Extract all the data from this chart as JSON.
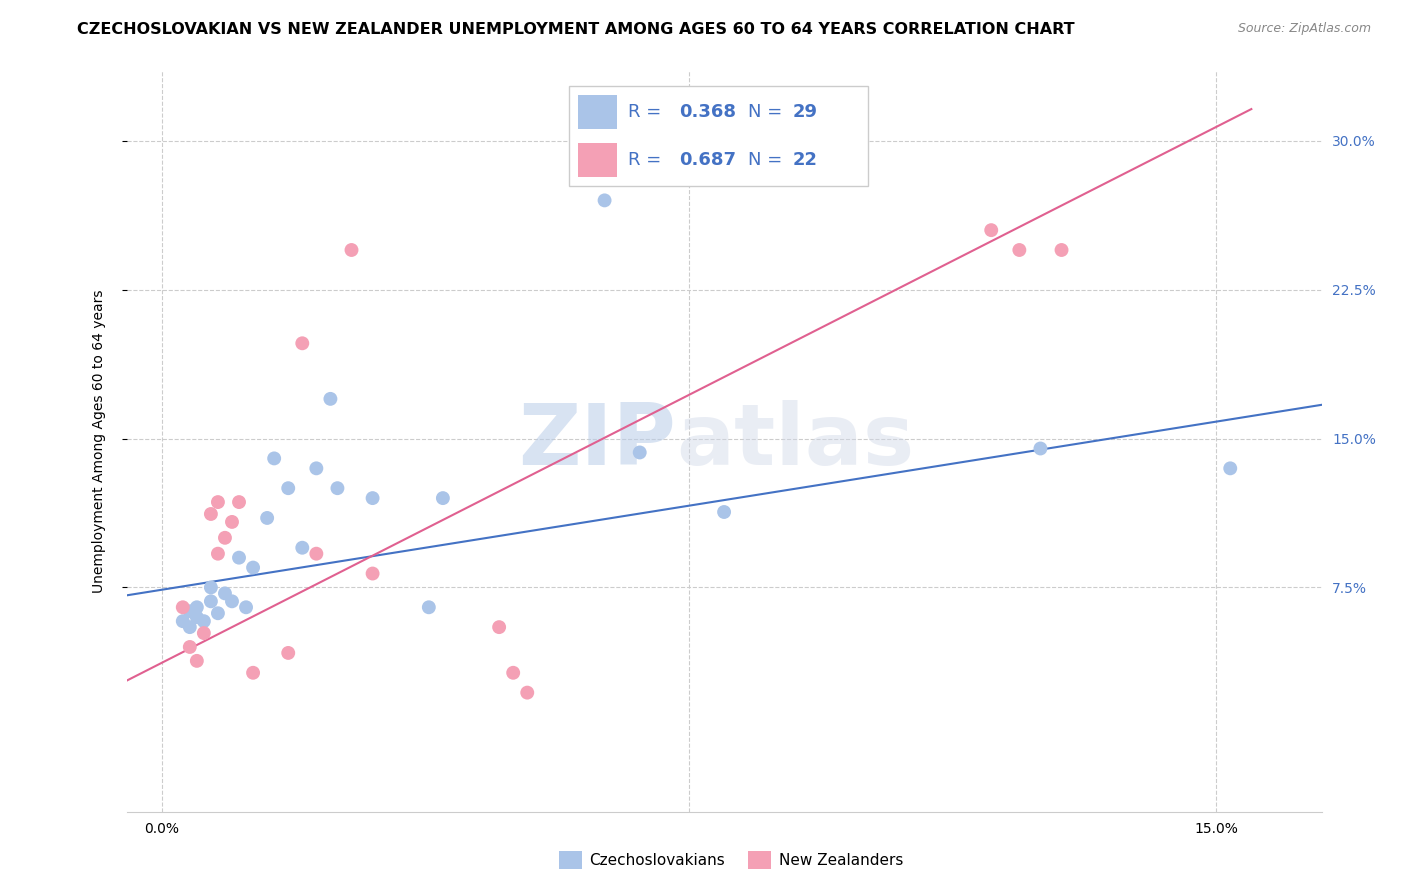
{
  "title": "CZECHOSLOVAKIAN VS NEW ZEALANDER UNEMPLOYMENT AMONG AGES 60 TO 64 YEARS CORRELATION CHART",
  "source": "Source: ZipAtlas.com",
  "ylabel": "Unemployment Among Ages 60 to 64 years",
  "watermark_zip": "ZIP",
  "watermark_atlas": "atlas",
  "xlim": [
    -0.005,
    0.165
  ],
  "ylim": [
    -0.038,
    0.335
  ],
  "blue_scatter_x": [
    0.003,
    0.004,
    0.004,
    0.005,
    0.005,
    0.006,
    0.007,
    0.007,
    0.008,
    0.009,
    0.01,
    0.011,
    0.012,
    0.013,
    0.015,
    0.016,
    0.018,
    0.02,
    0.022,
    0.024,
    0.025,
    0.03,
    0.038,
    0.04,
    0.063,
    0.068,
    0.08,
    0.125,
    0.152
  ],
  "blue_scatter_y": [
    0.058,
    0.055,
    0.063,
    0.06,
    0.065,
    0.058,
    0.068,
    0.075,
    0.062,
    0.072,
    0.068,
    0.09,
    0.065,
    0.085,
    0.11,
    0.14,
    0.125,
    0.095,
    0.135,
    0.17,
    0.125,
    0.12,
    0.065,
    0.12,
    0.27,
    0.143,
    0.113,
    0.145,
    0.135
  ],
  "pink_scatter_x": [
    0.003,
    0.004,
    0.005,
    0.006,
    0.007,
    0.008,
    0.008,
    0.009,
    0.01,
    0.011,
    0.013,
    0.018,
    0.02,
    0.022,
    0.027,
    0.03,
    0.048,
    0.05,
    0.052,
    0.118,
    0.122,
    0.128
  ],
  "pink_scatter_y": [
    0.065,
    0.045,
    0.038,
    0.052,
    0.112,
    0.118,
    0.092,
    0.1,
    0.108,
    0.118,
    0.032,
    0.042,
    0.198,
    0.092,
    0.245,
    0.082,
    0.055,
    0.032,
    0.022,
    0.255,
    0.245,
    0.245
  ],
  "blue_line_x": [
    -0.005,
    0.165
  ],
  "blue_line_y": [
    0.071,
    0.167
  ],
  "pink_line_x": [
    -0.005,
    0.155
  ],
  "pink_line_y": [
    0.028,
    0.316
  ],
  "blue_color": "#aac4e8",
  "blue_line_color": "#4472c4",
  "pink_color": "#f4a0b5",
  "pink_line_color": "#e06090",
  "legend_text_color": "#4472c4",
  "x_ticks": [
    0.0,
    0.075,
    0.15
  ],
  "x_tick_labels": [
    "0.0%",
    "",
    "15.0%"
  ],
  "y_ticks": [
    0.075,
    0.15,
    0.225,
    0.3
  ],
  "y_tick_labels": [
    "7.5%",
    "15.0%",
    "22.5%",
    "30.0%"
  ],
  "R_blue": "0.368",
  "N_blue": "29",
  "R_pink": "0.687",
  "N_pink": "22",
  "legend_labels": [
    "Czechoslovakians",
    "New Zealanders"
  ],
  "title_fontsize": 11.5,
  "axis_label_fontsize": 10,
  "tick_fontsize": 10,
  "legend_fontsize": 13
}
